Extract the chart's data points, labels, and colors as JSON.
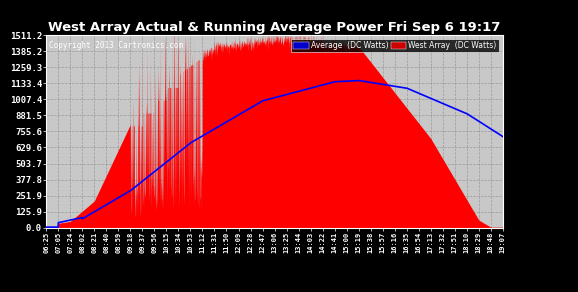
{
  "title": "West Array Actual & Running Average Power Fri Sep 6 19:17",
  "copyright": "Copyright 2013 Cartronics.com",
  "legend_avg": "Average  (DC Watts)",
  "legend_west": "West Array  (DC Watts)",
  "yticks": [
    0.0,
    125.9,
    251.9,
    377.8,
    503.7,
    629.6,
    755.6,
    881.5,
    1007.4,
    1133.4,
    1259.3,
    1385.2,
    1511.2
  ],
  "ymax": 1511.2,
  "xtick_labels": [
    "06:25",
    "07:05",
    "07:24",
    "08:02",
    "08:21",
    "08:40",
    "08:59",
    "09:18",
    "09:37",
    "09:56",
    "10:15",
    "10:34",
    "10:53",
    "11:12",
    "11:31",
    "11:50",
    "12:09",
    "12:28",
    "12:47",
    "13:06",
    "13:25",
    "13:44",
    "14:03",
    "14:22",
    "14:41",
    "15:00",
    "15:19",
    "15:38",
    "15:57",
    "16:16",
    "16:35",
    "16:54",
    "17:13",
    "17:32",
    "17:51",
    "18:10",
    "18:29",
    "18:48",
    "19:07"
  ],
  "fig_bg_color": "#000000",
  "plot_bg_color": "#c8c8c8",
  "fill_color": "#ff0000",
  "line_color": "#0000ff",
  "grid_color": "#888888",
  "title_color": "#ffffff",
  "tick_color": "#ffffff",
  "legend_avg_bg": "#0000cc",
  "legend_west_bg": "#cc0000",
  "legend_text_color": "#ffffff"
}
